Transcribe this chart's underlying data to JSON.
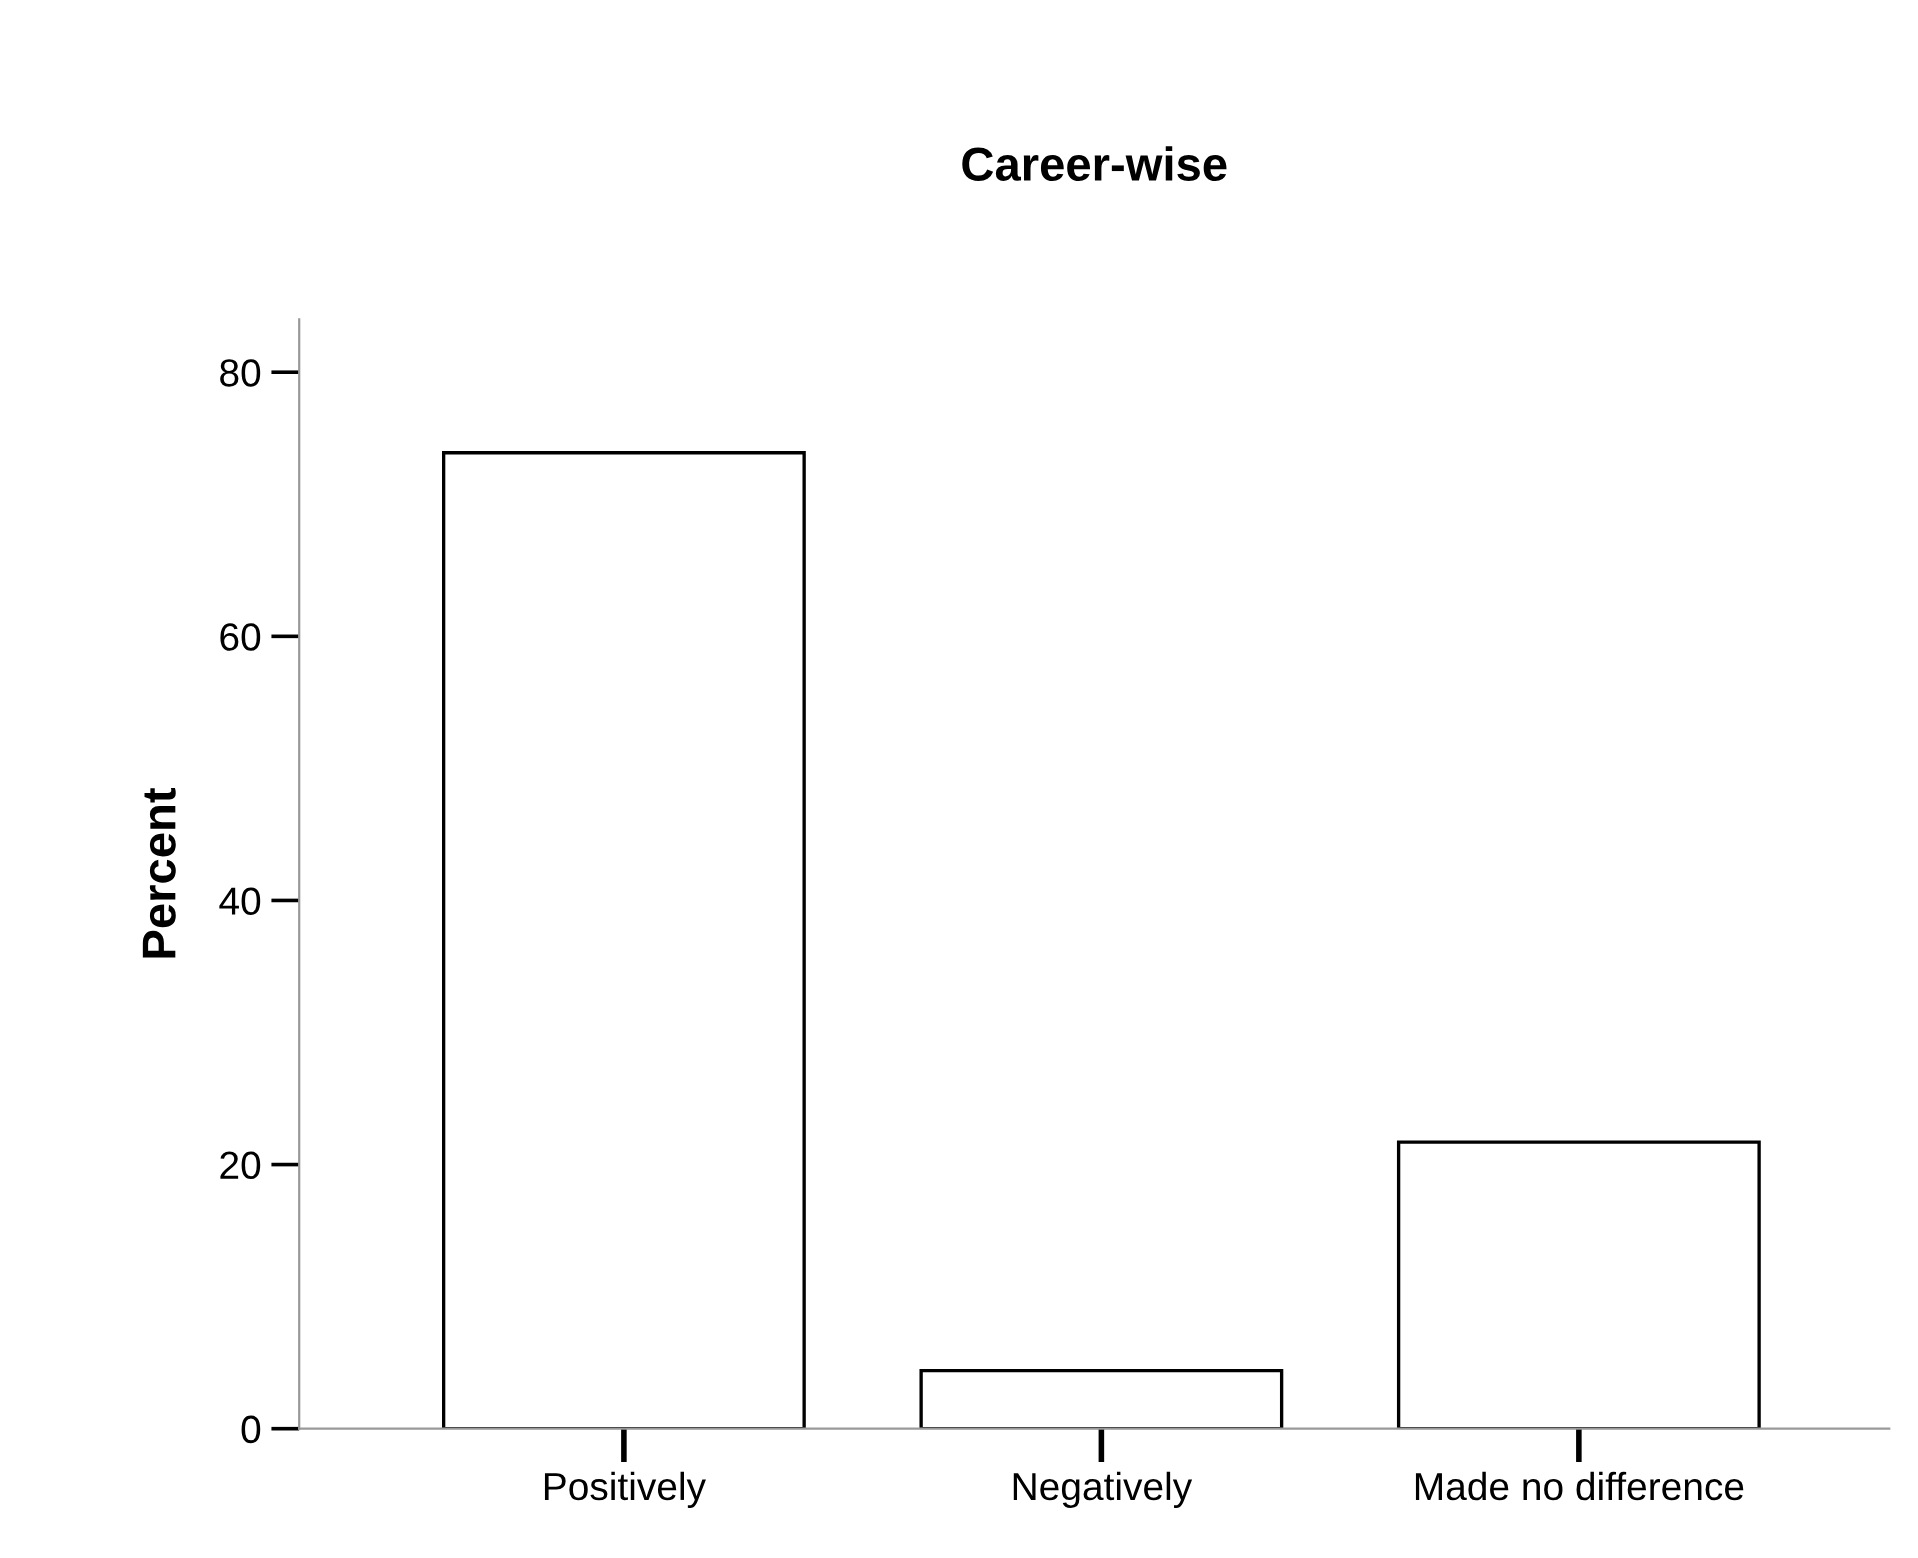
{
  "chart_data": {
    "type": "bar",
    "title": "Career-wise",
    "ylabel": "Percent",
    "categories": [
      "Positively",
      "Negatively",
      "Made no difference"
    ],
    "values": [
      73.9,
      4.4,
      21.7
    ],
    "color": "#ffffff",
    "ylim": [
      0,
      84
    ],
    "yticks": [
      0,
      20,
      40,
      60,
      80
    ],
    "grid": false,
    "legend": false
  }
}
